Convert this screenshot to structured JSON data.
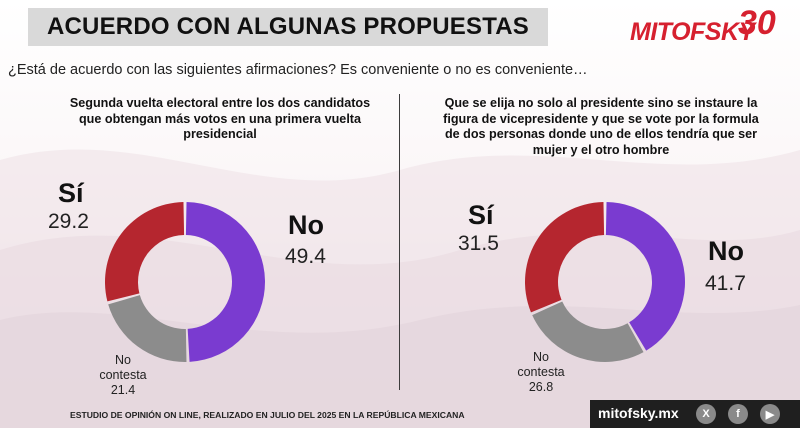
{
  "header": {
    "title": "ACUERDO CON ALGUNAS PROPUESTAS",
    "logo_text": "MITOFSKY",
    "logo_number": "30"
  },
  "question": "¿Está de acuerdo con las siguientes afirmaciones? Es conveniente o no es conveniente…",
  "colors": {
    "si": "#b5262f",
    "no": "#7a3bd0",
    "no_contesta": "#8c8c8c"
  },
  "chart_data": [
    {
      "type": "pie",
      "title": "Segunda vuelta electoral entre los dos candidatos que obtengan más votos en una primera vuelta presidencial",
      "labels": {
        "si": "Sí",
        "no": "No",
        "nc_line1": "No",
        "nc_line2": "contesta"
      },
      "values": {
        "si": 29.2,
        "no": 49.4,
        "no_contesta": 21.4
      },
      "display": {
        "si": "29.2",
        "no": "49.4",
        "no_contesta": "21.4"
      }
    },
    {
      "type": "pie",
      "title": "Que se elija no solo al presidente sino se instaure la figura de vicepresidente y que se vote por la formula de dos personas donde uno de ellos tendría que ser mujer y el otro hombre",
      "labels": {
        "si": "Sí",
        "no": "No",
        "nc_line1": "No",
        "nc_line2": "contesta"
      },
      "values": {
        "si": 31.5,
        "no": 41.7,
        "no_contesta": 26.8
      },
      "display": {
        "si": "31.5",
        "no": "41.7",
        "no_contesta": "26.8"
      }
    }
  ],
  "footer": {
    "note": "ESTUDIO DE OPINIÓN ON LINE, REALIZADO EN JULIO DEL 2025 EN LA REPÚBLICA MEXICANA",
    "url": "mitofsky.mx",
    "social": [
      "x-icon",
      "facebook-icon",
      "youtube-icon"
    ]
  }
}
